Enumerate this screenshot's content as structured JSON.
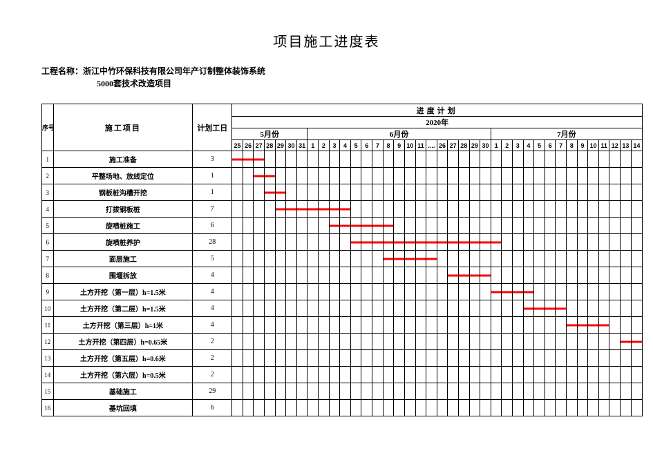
{
  "title": "项目施工进度表",
  "project_name_label": "工程名称：",
  "project_name_line1": "浙江中竹环保科技有限公司年产订制整体装饰系统",
  "project_name_line2": "5000套技术改造项目",
  "headers": {
    "index": "序号",
    "task": "施工项目",
    "duration": "计划工日",
    "plan": "进度计划",
    "year": "2020年",
    "months": [
      "5月份",
      "6月份",
      "7月份"
    ]
  },
  "timeline": {
    "columns": [
      {
        "label": "25",
        "m": 5
      },
      {
        "label": "26",
        "m": 5
      },
      {
        "label": "27",
        "m": 5
      },
      {
        "label": "28",
        "m": 5
      },
      {
        "label": "29",
        "m": 5
      },
      {
        "label": "30",
        "m": 5
      },
      {
        "label": "31",
        "m": 5
      },
      {
        "label": "1",
        "m": 6
      },
      {
        "label": "2",
        "m": 6
      },
      {
        "label": "3",
        "m": 6
      },
      {
        "label": "4",
        "m": 6
      },
      {
        "label": "5",
        "m": 6
      },
      {
        "label": "6",
        "m": 6
      },
      {
        "label": "7",
        "m": 6
      },
      {
        "label": "8",
        "m": 6
      },
      {
        "label": "9",
        "m": 6
      },
      {
        "label": "10",
        "m": 6
      },
      {
        "label": "11",
        "m": 6
      },
      {
        "label": "....",
        "m": 6
      },
      {
        "label": "26",
        "m": 6
      },
      {
        "label": "27",
        "m": 6
      },
      {
        "label": "28",
        "m": 6
      },
      {
        "label": "29",
        "m": 6
      },
      {
        "label": "30",
        "m": 6
      },
      {
        "label": "1",
        "m": 7
      },
      {
        "label": "2",
        "m": 7
      },
      {
        "label": "3",
        "m": 7
      },
      {
        "label": "4",
        "m": 7
      },
      {
        "label": "5",
        "m": 7
      },
      {
        "label": "6",
        "m": 7
      },
      {
        "label": "7",
        "m": 7
      },
      {
        "label": "8",
        "m": 7
      },
      {
        "label": "9",
        "m": 7
      },
      {
        "label": "10",
        "m": 7
      },
      {
        "label": "11",
        "m": 7
      },
      {
        "label": "12",
        "m": 7
      },
      {
        "label": "13",
        "m": 7
      },
      {
        "label": "14",
        "m": 7
      }
    ],
    "month_spans": {
      "5": 7,
      "6": 17,
      "7": 14
    }
  },
  "bar_color": "#ff0000",
  "grid_color": "#000000",
  "background_color": "#ffffff",
  "title_fontsize_pt": 16,
  "body_fontsize_pt": 8,
  "tasks": [
    {
      "idx": 1,
      "name": "施工准备",
      "duration": 3,
      "start": 0,
      "end": 2
    },
    {
      "idx": 2,
      "name": "平整场地、放线定位",
      "duration": 1,
      "start": 2,
      "end": 3
    },
    {
      "idx": 3,
      "name": "钢板桩沟槽开挖",
      "duration": 1,
      "start": 3,
      "end": 4
    },
    {
      "idx": 4,
      "name": "打拔钢板桩",
      "duration": 7,
      "start": 4,
      "end": 10
    },
    {
      "idx": 5,
      "name": "旋喷桩施工",
      "duration": 6,
      "start": 9,
      "end": 14
    },
    {
      "idx": 6,
      "name": "旋喷桩养护",
      "duration": 28,
      "start": 11,
      "end": 24
    },
    {
      "idx": 7,
      "name": "面层施工",
      "duration": 5,
      "start": 14,
      "end": 18
    },
    {
      "idx": 8,
      "name": "围堰拆放",
      "duration": 4,
      "start": 20,
      "end": 23
    },
    {
      "idx": 9,
      "name": "土方开挖（第一层）h=1.5米",
      "duration": 4,
      "start": 24,
      "end": 27
    },
    {
      "idx": 10,
      "name": "土方开挖（第二层）h=1.5米",
      "duration": 4,
      "start": 27,
      "end": 30
    },
    {
      "idx": 11,
      "name": "土方开挖（第三层）h=1米",
      "duration": 4,
      "start": 31,
      "end": 34
    },
    {
      "idx": 12,
      "name": "土方开挖（第四层）h=0.65米",
      "duration": 2,
      "start": 36,
      "end": 37
    },
    {
      "idx": 13,
      "name": "土方开挖（第五层）h=0.6米",
      "duration": 2,
      "start": null,
      "end": null
    },
    {
      "idx": 14,
      "name": "土方开挖（第六层）h=0.5米",
      "duration": 2,
      "start": null,
      "end": null
    },
    {
      "idx": 15,
      "name": "基础施工",
      "duration": 29,
      "start": null,
      "end": null
    },
    {
      "idx": 16,
      "name": "基坑回填",
      "duration": 6,
      "start": null,
      "end": null
    }
  ]
}
